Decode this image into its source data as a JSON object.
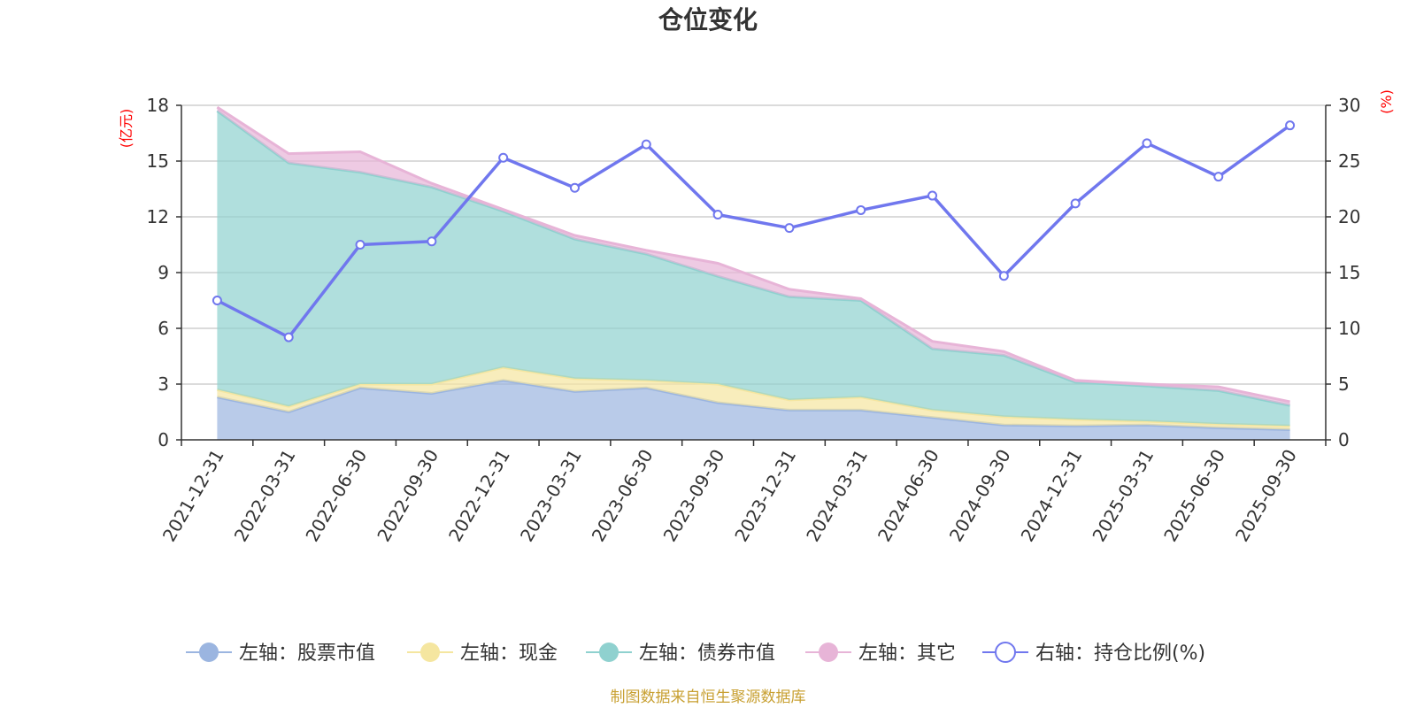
{
  "chart_data": {
    "type": "area",
    "title": "仓位变化",
    "source_note": "制图数据来自恒生聚源数据库",
    "categories": [
      "2021-12-31",
      "2022-03-31",
      "2022-06-30",
      "2022-09-30",
      "2022-12-31",
      "2023-03-31",
      "2023-06-30",
      "2023-09-30",
      "2023-12-31",
      "2024-03-31",
      "2024-06-30",
      "2024-09-30",
      "2024-12-31",
      "2025-03-31",
      "2025-06-30",
      "2025-09-30"
    ],
    "left_axis": {
      "unit": "(亿元)",
      "ticks": [
        "0",
        "3",
        "6",
        "9",
        "12",
        "15",
        "18"
      ],
      "ylim": [
        0,
        18
      ]
    },
    "right_axis": {
      "unit": "(%)",
      "ticks": [
        "0",
        "5",
        "10",
        "15",
        "20",
        "25",
        "30"
      ],
      "ylim": [
        0,
        30
      ]
    },
    "stacked_series": [
      {
        "name": "左轴：股票市值",
        "color": "#9bb5e0",
        "values": [
          2.3,
          1.5,
          2.8,
          2.5,
          3.2,
          2.6,
          2.8,
          2.0,
          1.6,
          1.6,
          1.2,
          0.8,
          0.75,
          0.8,
          0.65,
          0.55
        ]
      },
      {
        "name": "左轴：现金",
        "color": "#f5e6a0",
        "values": [
          0.4,
          0.3,
          0.2,
          0.5,
          0.7,
          0.7,
          0.4,
          1.0,
          0.55,
          0.7,
          0.4,
          0.45,
          0.35,
          0.2,
          0.2,
          0.2
        ]
      },
      {
        "name": "左轴：债券市值",
        "color": "#8fd1cf",
        "values": [
          15.0,
          13.1,
          11.4,
          10.6,
          8.4,
          7.5,
          6.8,
          5.8,
          5.55,
          5.2,
          3.3,
          3.3,
          2.0,
          1.9,
          1.8,
          1.1
        ]
      },
      {
        "name": "左轴：其它",
        "color": "#e7b4d7",
        "values": [
          0.2,
          0.5,
          1.1,
          0.2,
          0.1,
          0.2,
          0.2,
          0.7,
          0.4,
          0.1,
          0.4,
          0.2,
          0.1,
          0.1,
          0.2,
          0.2
        ]
      }
    ],
    "line_series": {
      "name": "右轴：持仓比例(%)",
      "color": "#7077ee",
      "axis": "right",
      "values": [
        12.5,
        9.2,
        17.5,
        17.8,
        25.3,
        22.6,
        26.5,
        20.2,
        19.0,
        20.6,
        21.9,
        14.7,
        21.2,
        26.6,
        23.6,
        28.2
      ]
    }
  }
}
